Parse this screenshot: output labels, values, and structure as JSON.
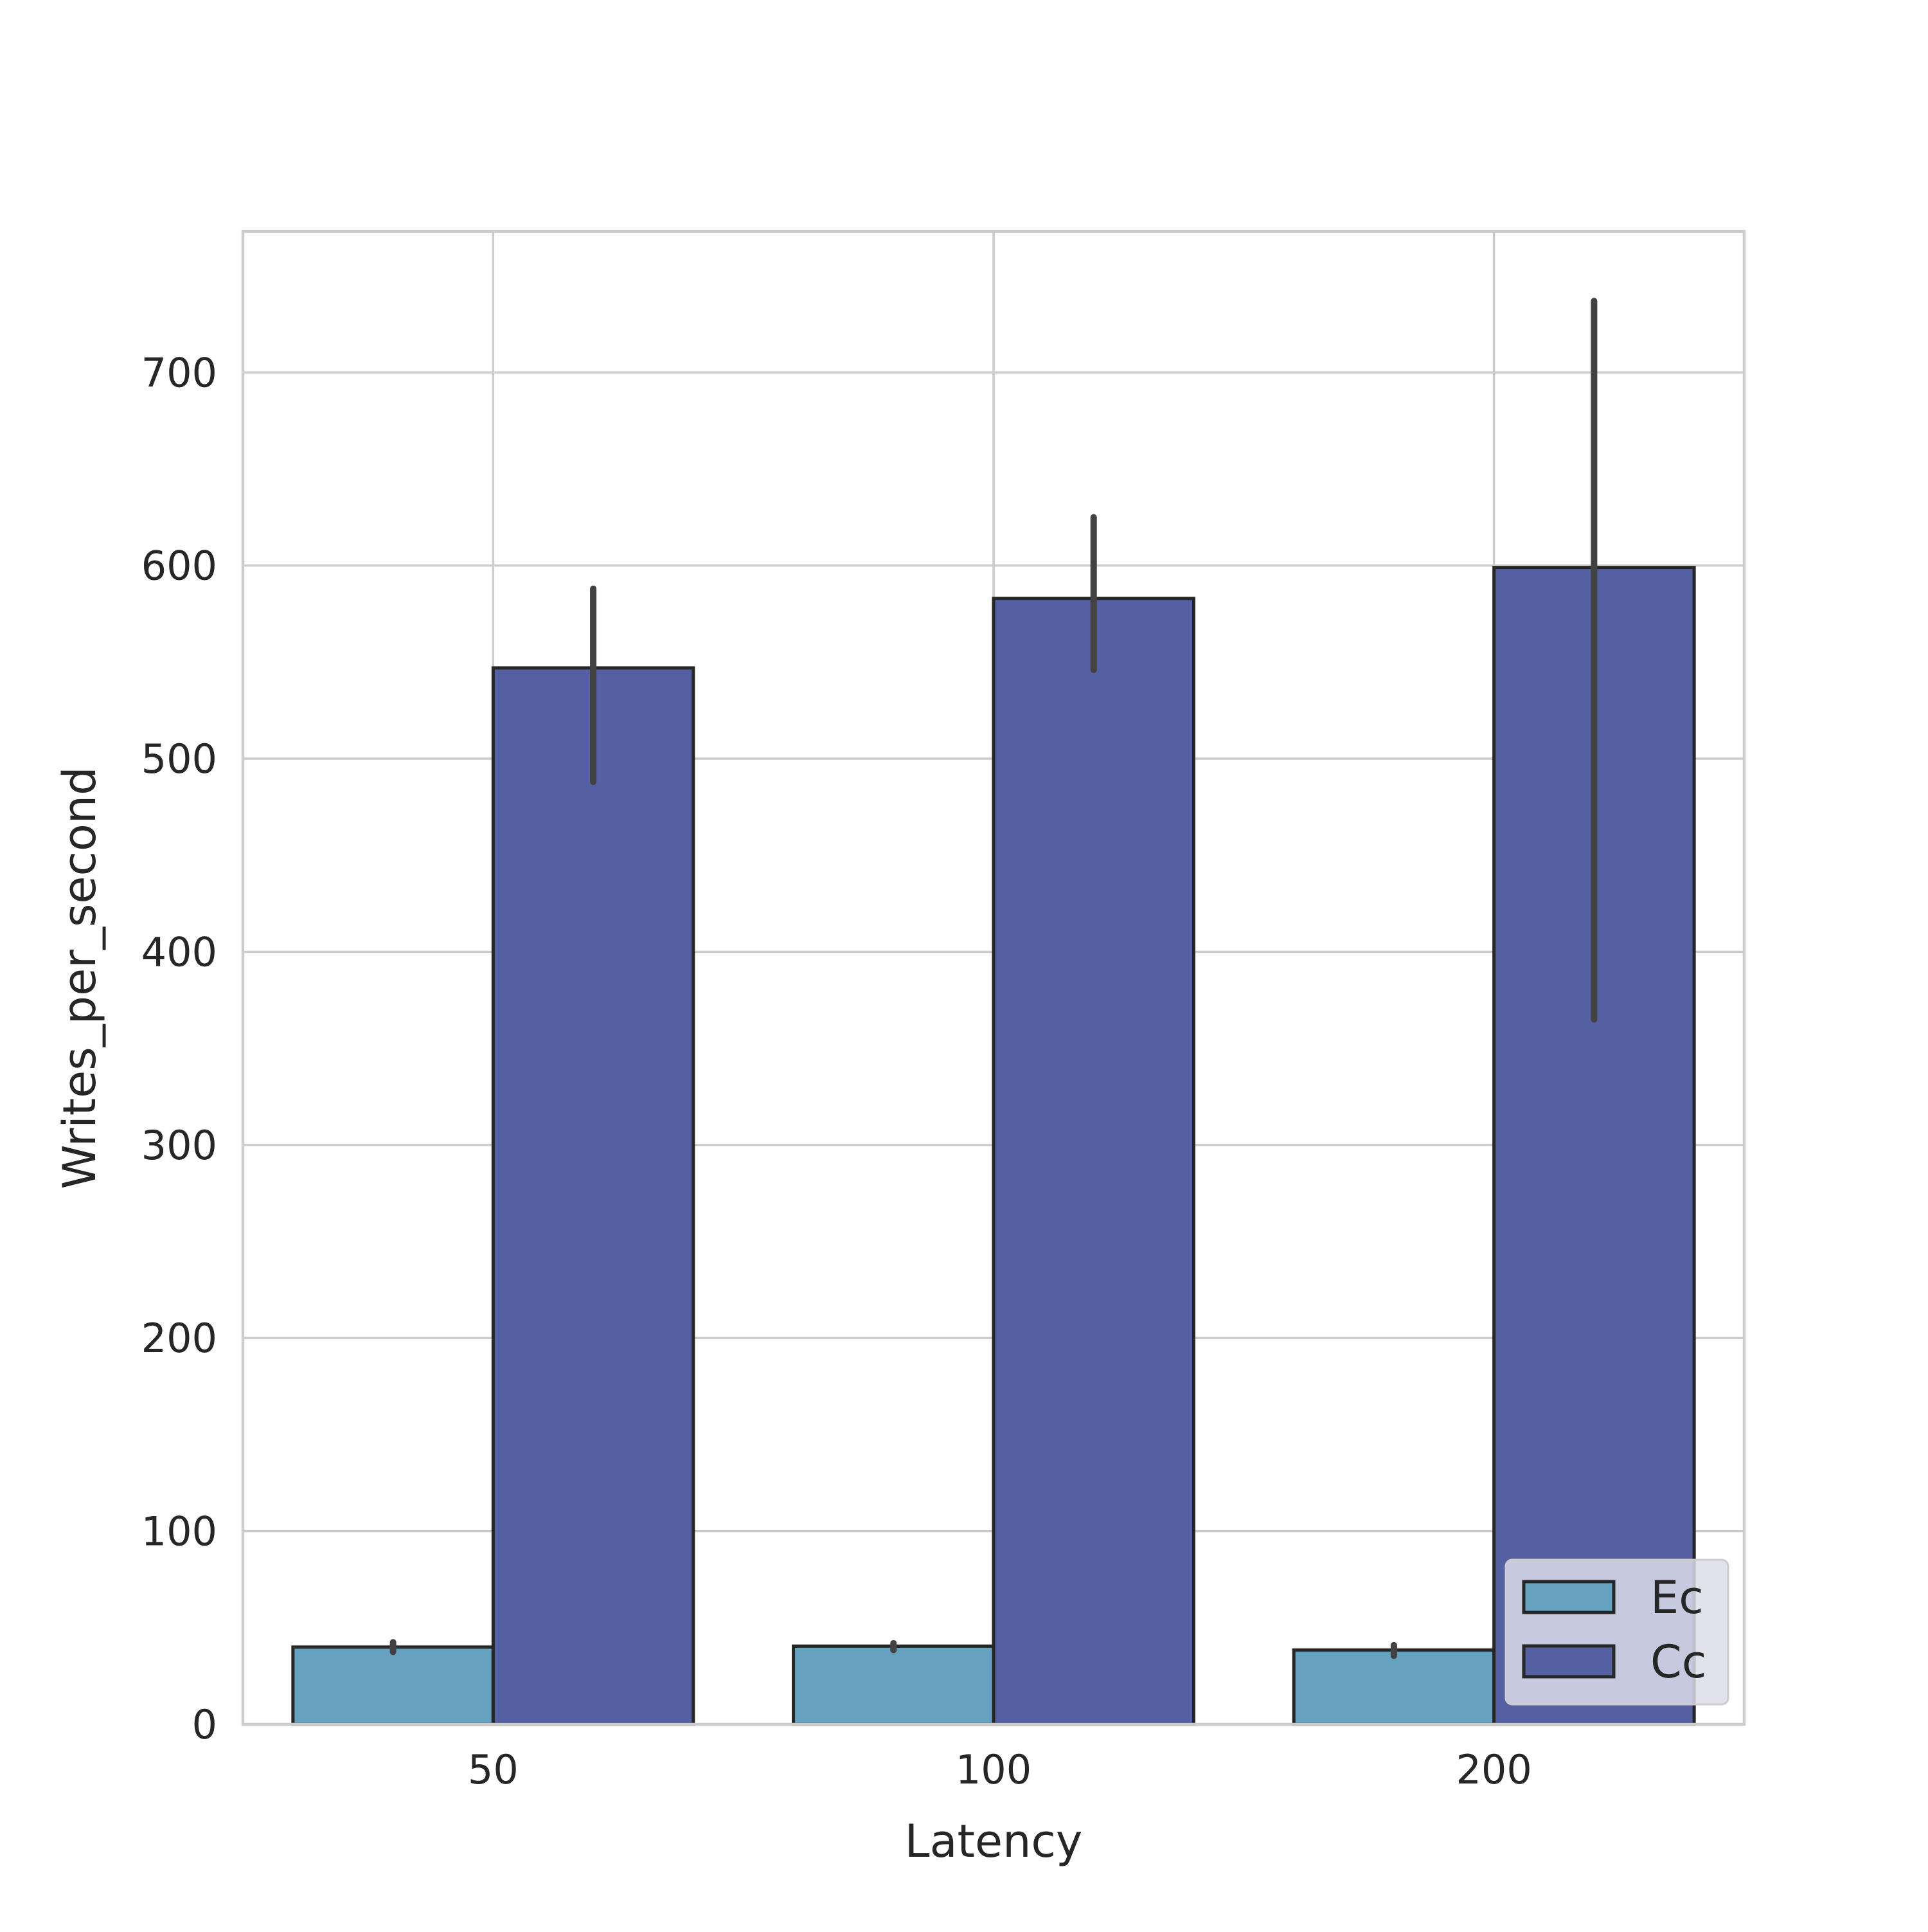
{
  "chart_data": {
    "type": "bar",
    "title": "",
    "xlabel": "Latency",
    "ylabel": "Writes_per_second",
    "categories": [
      "50",
      "100",
      "200"
    ],
    "ylim": [
      0,
      773
    ],
    "yticks": [
      0,
      100,
      200,
      300,
      400,
      500,
      600,
      700
    ],
    "grid": true,
    "legend_position": "lower-right",
    "series": [
      {
        "name": "Ec",
        "color": "#67a1c0",
        "values": [
          40,
          40.5,
          38.5
        ],
        "error_low": [
          37.5,
          38.5,
          35.5
        ],
        "error_high": [
          42.5,
          42,
          41
        ]
      },
      {
        "name": "Cc",
        "color": "#5560a3",
        "values": [
          547,
          583,
          599
        ],
        "error_low": [
          488,
          546,
          365
        ],
        "error_high": [
          588,
          625,
          737
        ]
      }
    ],
    "colors": {
      "edge": "#262626",
      "grid": "#cccccc",
      "errorbar": "#424242",
      "legend_bg": "#dcdde9",
      "legend_edge": "#cccccc"
    }
  }
}
